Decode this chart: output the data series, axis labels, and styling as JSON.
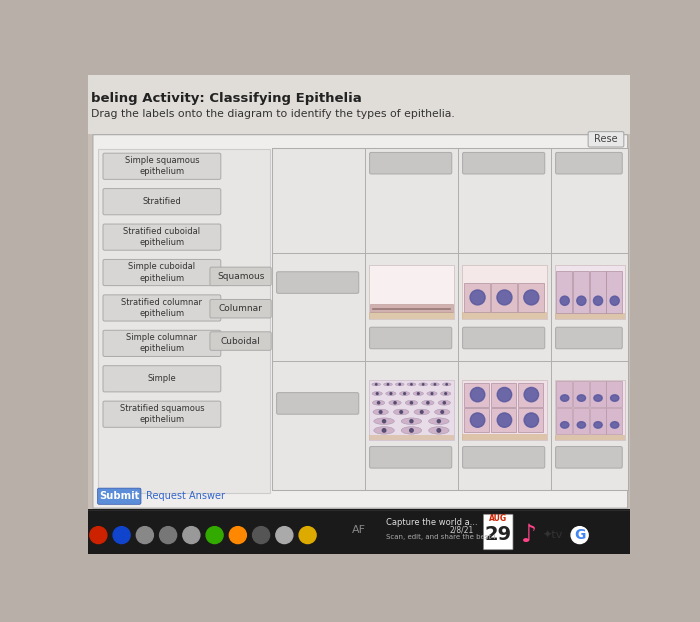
{
  "title": "beling Activity: Classifying Epithelia",
  "subtitle": "Drag the labels onto the diagram to identify the types of epithelia.",
  "bg_color": "#b8b0a8",
  "screen_bg": "#c8c0b8",
  "panel_bg": "#f0eeec",
  "inner_bg": "#e8e6e4",
  "label_btn_color": "#d8d6d4",
  "type_btn_color": "#d0ceca",
  "answer_box_color": "#c8c6c4",
  "grid_line_color": "#b0aeac",
  "submit_color": "#5b8dd9",
  "submit_text": "Submit",
  "request_text": "Request Answer",
  "reset_text": "Rese",
  "label_buttons": [
    "Simple squamous\nepithelium",
    "Stratified",
    "Stratified cuboidal\nepithelium",
    "Simple cuboidal\nepithelium",
    "Stratified columnar\nepithelium",
    "Simple columnar\nepithelium",
    "Simple",
    "Stratified squamous\nepithelium"
  ],
  "type_buttons": [
    "Squamous",
    "Columnar",
    "Cuboidal"
  ],
  "taskbar_bg": "#1a1a1a",
  "taskbar_icon_colors": [
    "#cc2200",
    "#1144cc",
    "#888888",
    "#777777",
    "#999999",
    "#33aa00",
    "#ff8800",
    "#555555",
    "#aaaaaa",
    "#ddaa00",
    "#cc4444",
    "#00aa66"
  ],
  "cell_pink": "#e8d0d0",
  "cell_purple": "#c8b8d8",
  "nucleus_color": "#5858a0",
  "basement_color": "#d4b890"
}
